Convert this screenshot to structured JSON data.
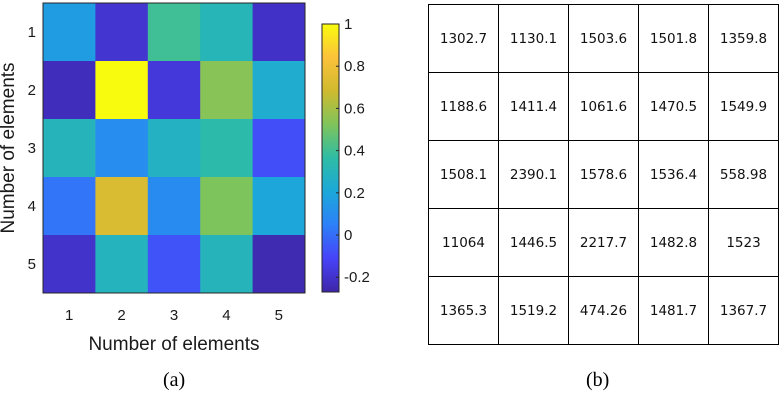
{
  "chart_data": [
    {
      "type": "heatmap",
      "title": "",
      "xlabel": "Number of elements",
      "ylabel": "Number of elements",
      "x_categories": [
        "1",
        "2",
        "3",
        "4",
        "5"
      ],
      "y_categories": [
        "1",
        "2",
        "3",
        "4",
        "5"
      ],
      "values": [
        [
          0.16,
          -0.19,
          0.4,
          0.31,
          -0.21
        ],
        [
          -0.23,
          1.0,
          -0.17,
          0.54,
          0.24
        ],
        [
          0.3,
          0.1,
          0.28,
          0.35,
          -0.08
        ],
        [
          0.02,
          0.72,
          0.09,
          0.52,
          0.2
        ],
        [
          -0.2,
          0.29,
          -0.07,
          0.3,
          -0.25
        ]
      ],
      "colorbar": {
        "range": [
          -0.27,
          1.0
        ],
        "ticks": [
          "-0.2",
          "0",
          "0.2",
          "0.4",
          "0.6",
          "0.8",
          "1"
        ],
        "tick_values": [
          -0.2,
          0,
          0.2,
          0.4,
          0.6,
          0.8,
          1.0
        ],
        "colormap": "parula"
      },
      "caption": "(a)"
    },
    {
      "type": "table",
      "rows": [
        [
          "1302.7",
          "1130.1",
          "1503.6",
          "1501.8",
          "1359.8"
        ],
        [
          "1188.6",
          "1411.4",
          "1061.6",
          "1470.5",
          "1549.9"
        ],
        [
          "1508.1",
          "2390.1",
          "1578.6",
          "1536.4",
          "558.98"
        ],
        [
          "11064",
          "1446.5",
          "2217.7",
          "1482.8",
          "1523"
        ],
        [
          "1365.3",
          "1519.2",
          "474.26",
          "1481.7",
          "1367.7"
        ]
      ],
      "caption": "(b)"
    }
  ]
}
